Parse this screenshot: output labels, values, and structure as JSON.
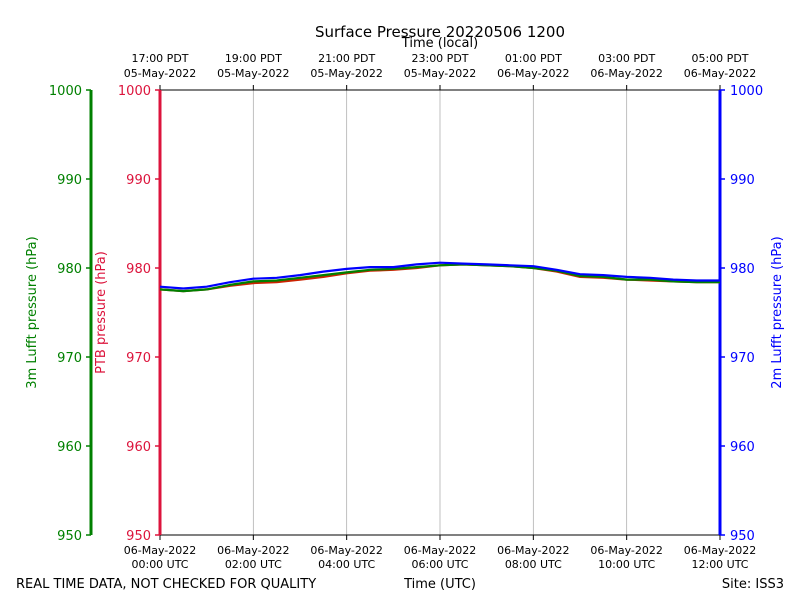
{
  "chart_data": {
    "type": "line",
    "title": "Surface Pressure 20220506 1200",
    "xlabel_bottom": "Time (UTC)",
    "xlabel_top": "Time (local)",
    "x_range_hours": [
      0,
      12
    ],
    "bottom_ticks": [
      {
        "h": 0,
        "date": "06-May-2022",
        "time": "00:00 UTC"
      },
      {
        "h": 2,
        "date": "06-May-2022",
        "time": "02:00 UTC"
      },
      {
        "h": 4,
        "date": "06-May-2022",
        "time": "04:00 UTC"
      },
      {
        "h": 6,
        "date": "06-May-2022",
        "time": "06:00 UTC"
      },
      {
        "h": 8,
        "date": "06-May-2022",
        "time": "08:00 UTC"
      },
      {
        "h": 10,
        "date": "06-May-2022",
        "time": "10:00 UTC"
      },
      {
        "h": 12,
        "date": "06-May-2022",
        "time": "12:00 UTC"
      }
    ],
    "top_ticks": [
      {
        "h": 0,
        "time": "17:00 PDT",
        "date": "05-May-2022"
      },
      {
        "h": 2,
        "time": "19:00 PDT",
        "date": "05-May-2022"
      },
      {
        "h": 4,
        "time": "21:00 PDT",
        "date": "05-May-2022"
      },
      {
        "h": 6,
        "time": "23:00 PDT",
        "date": "05-May-2022"
      },
      {
        "h": 8,
        "time": "01:00 PDT",
        "date": "06-May-2022"
      },
      {
        "h": 10,
        "time": "03:00 PDT",
        "date": "06-May-2022"
      },
      {
        "h": 12,
        "time": "05:00 PDT",
        "date": "06-May-2022"
      }
    ],
    "ylim": [
      950,
      1000
    ],
    "yticks": [
      950,
      960,
      970,
      980,
      990,
      1000
    ],
    "axes": [
      {
        "label": "3m Lufft pressure (hPa)",
        "color": "#008000"
      },
      {
        "label": "PTB pressure (hPa)",
        "color": "#dc143c"
      },
      {
        "label": "2m Lufft pressure (hPa)",
        "color": "#0000ff"
      }
    ],
    "grid": "vertical",
    "series": [
      {
        "color": "#cc2200",
        "x": [
          0,
          0.5,
          1,
          1.5,
          2,
          2.5,
          3,
          3.5,
          4,
          4.5,
          5,
          5.5,
          6,
          6.5,
          7,
          7.5,
          8,
          8.5,
          9,
          9.5,
          10,
          10.5,
          11,
          11.5,
          12
        ],
        "y": [
          977.6,
          977.4,
          977.6,
          978.0,
          978.3,
          978.4,
          978.7,
          979.0,
          979.4,
          979.7,
          979.8,
          980.0,
          980.3,
          980.4,
          980.3,
          980.2,
          980.0,
          979.6,
          979.0,
          978.9,
          978.7,
          978.6,
          978.5,
          978.4,
          978.4
        ]
      },
      {
        "color": "#008000",
        "x": [
          0,
          0.5,
          1,
          1.5,
          2,
          2.5,
          3,
          3.5,
          4,
          4.5,
          5,
          5.5,
          6,
          6.5,
          7,
          7.5,
          8,
          8.5,
          9,
          9.5,
          10,
          10.5,
          11,
          11.5,
          12
        ],
        "y": [
          977.6,
          977.4,
          977.6,
          978.1,
          978.5,
          978.6,
          978.9,
          979.2,
          979.5,
          979.8,
          979.9,
          980.1,
          980.3,
          980.4,
          980.3,
          980.2,
          980.0,
          979.7,
          979.1,
          979.0,
          978.7,
          978.7,
          978.5,
          978.4,
          978.4
        ]
      },
      {
        "color": "#0000ff",
        "x": [
          0,
          0.5,
          1,
          1.5,
          2,
          2.5,
          3,
          3.5,
          4,
          4.5,
          5,
          5.5,
          6,
          6.5,
          7,
          7.5,
          8,
          8.5,
          9,
          9.5,
          10,
          10.5,
          11,
          11.5,
          12
        ],
        "y": [
          977.9,
          977.7,
          977.9,
          978.4,
          978.8,
          978.9,
          979.2,
          979.6,
          979.9,
          980.1,
          980.1,
          980.4,
          980.6,
          980.5,
          980.4,
          980.3,
          980.2,
          979.8,
          979.3,
          979.2,
          979.0,
          978.9,
          978.7,
          978.6,
          978.6
        ]
      }
    ]
  },
  "footer": {
    "left_note": "REAL TIME DATA, NOT CHECKED FOR QUALITY",
    "site": "Site: ISS3"
  }
}
